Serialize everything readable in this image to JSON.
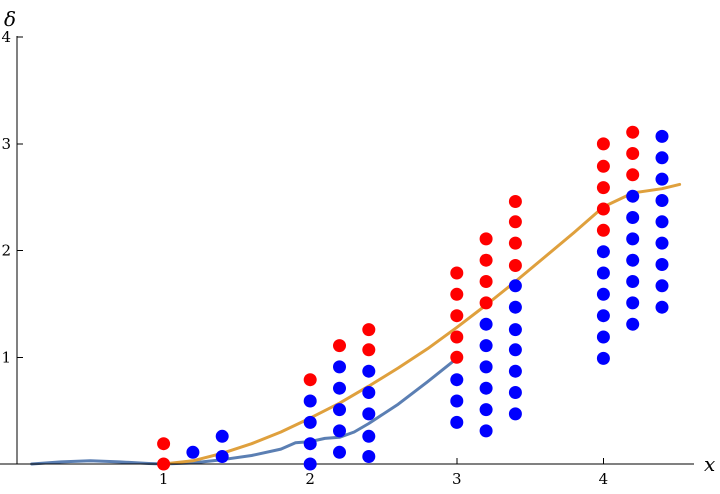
{
  "chart_data": {
    "type": "scatter",
    "xlabel": "x",
    "ylabel": "δ",
    "xlim": [
      0,
      4.62
    ],
    "ylim": [
      0,
      4
    ],
    "x_ticks": [
      "1",
      "2",
      "3",
      "4"
    ],
    "y_ticks": [
      "1",
      "2",
      "3",
      "4"
    ],
    "grid": false,
    "colors": {
      "red": "#ff0000",
      "blue": "#0000ff",
      "curve_blue": "#5b7fb3",
      "curve_orange": "#dfa03d"
    },
    "series": [
      {
        "color": "red",
        "points": [
          [
            1,
            0.19
          ],
          [
            1,
            0
          ],
          [
            2,
            0.79
          ],
          [
            2.2,
            1.11
          ],
          [
            2.4,
            1.26
          ],
          [
            2.4,
            1.07
          ],
          [
            3,
            1.79
          ],
          [
            3,
            1.59
          ],
          [
            3,
            1.39
          ],
          [
            3,
            1.19
          ],
          [
            3,
            1.0
          ],
          [
            3.2,
            2.11
          ],
          [
            3.2,
            1.91
          ],
          [
            3.2,
            1.71
          ],
          [
            3.2,
            1.51
          ],
          [
            3.4,
            2.46
          ],
          [
            3.4,
            2.27
          ],
          [
            3.4,
            2.07
          ],
          [
            3.4,
            1.86
          ],
          [
            4,
            3.0
          ],
          [
            4,
            2.79
          ],
          [
            4,
            2.59
          ],
          [
            4,
            2.39
          ],
          [
            4,
            2.19
          ],
          [
            4.2,
            3.11
          ],
          [
            4.2,
            2.91
          ],
          [
            4.2,
            2.71
          ]
        ]
      },
      {
        "color": "blue",
        "points": [
          [
            1.2,
            0.11
          ],
          [
            1.4,
            0.26
          ],
          [
            1.4,
            0.07
          ],
          [
            2,
            0.59
          ],
          [
            2,
            0.39
          ],
          [
            2,
            0.19
          ],
          [
            2,
            0
          ],
          [
            2.2,
            0.91
          ],
          [
            2.2,
            0.71
          ],
          [
            2.2,
            0.51
          ],
          [
            2.2,
            0.31
          ],
          [
            2.2,
            0.11
          ],
          [
            2.4,
            0.87
          ],
          [
            2.4,
            0.67
          ],
          [
            2.4,
            0.47
          ],
          [
            2.4,
            0.26
          ],
          [
            2.4,
            0.07
          ],
          [
            3,
            0.79
          ],
          [
            3,
            0.59
          ],
          [
            3,
            0.39
          ],
          [
            3.2,
            1.31
          ],
          [
            3.2,
            1.11
          ],
          [
            3.2,
            0.91
          ],
          [
            3.2,
            0.71
          ],
          [
            3.2,
            0.51
          ],
          [
            3.2,
            0.31
          ],
          [
            3.4,
            1.67
          ],
          [
            3.4,
            1.47
          ],
          [
            3.4,
            1.26
          ],
          [
            3.4,
            1.07
          ],
          [
            3.4,
            0.87
          ],
          [
            3.4,
            0.67
          ],
          [
            3.4,
            0.47
          ],
          [
            4,
            1.99
          ],
          [
            4,
            1.79
          ],
          [
            4,
            1.59
          ],
          [
            4,
            1.39
          ],
          [
            4,
            1.19
          ],
          [
            4,
            0.99
          ],
          [
            4.2,
            2.51
          ],
          [
            4.2,
            2.31
          ],
          [
            4.2,
            2.11
          ],
          [
            4.2,
            1.91
          ],
          [
            4.2,
            1.71
          ],
          [
            4.2,
            1.51
          ],
          [
            4.2,
            1.31
          ],
          [
            4.4,
            3.07
          ],
          [
            4.4,
            2.87
          ],
          [
            4.4,
            2.67
          ],
          [
            4.4,
            2.47
          ],
          [
            4.4,
            2.27
          ],
          [
            4.4,
            2.07
          ],
          [
            4.4,
            1.87
          ],
          [
            4.4,
            1.67
          ],
          [
            4.4,
            1.47
          ]
        ]
      }
    ],
    "curves": [
      {
        "color": "curve_blue",
        "points": [
          [
            0.1,
            0.0
          ],
          [
            0.3,
            0.02
          ],
          [
            0.5,
            0.03
          ],
          [
            0.7,
            0.02
          ],
          [
            0.9,
            0.005
          ],
          [
            1.0,
            0.0
          ],
          [
            1.2,
            0.01
          ],
          [
            1.4,
            0.04
          ],
          [
            1.6,
            0.08
          ],
          [
            1.8,
            0.14
          ],
          [
            1.9,
            0.2
          ],
          [
            2.0,
            0.21
          ],
          [
            2.1,
            0.24
          ],
          [
            2.2,
            0.25
          ],
          [
            2.3,
            0.3
          ],
          [
            2.4,
            0.38
          ],
          [
            2.6,
            0.56
          ],
          [
            2.8,
            0.77
          ],
          [
            3.0,
            0.99
          ]
        ]
      },
      {
        "color": "curve_orange",
        "points": [
          [
            1.0,
            0.0
          ],
          [
            1.2,
            0.03
          ],
          [
            1.4,
            0.1
          ],
          [
            1.6,
            0.19
          ],
          [
            1.8,
            0.3
          ],
          [
            2.0,
            0.43
          ],
          [
            2.2,
            0.57
          ],
          [
            2.4,
            0.73
          ],
          [
            2.6,
            0.9
          ],
          [
            2.8,
            1.08
          ],
          [
            3.0,
            1.28
          ],
          [
            3.2,
            1.49
          ],
          [
            3.4,
            1.71
          ],
          [
            3.6,
            1.94
          ],
          [
            3.8,
            2.17
          ],
          [
            4.0,
            2.41
          ],
          [
            4.2,
            2.54
          ],
          [
            4.4,
            2.58
          ],
          [
            4.52,
            2.62
          ]
        ]
      }
    ]
  }
}
